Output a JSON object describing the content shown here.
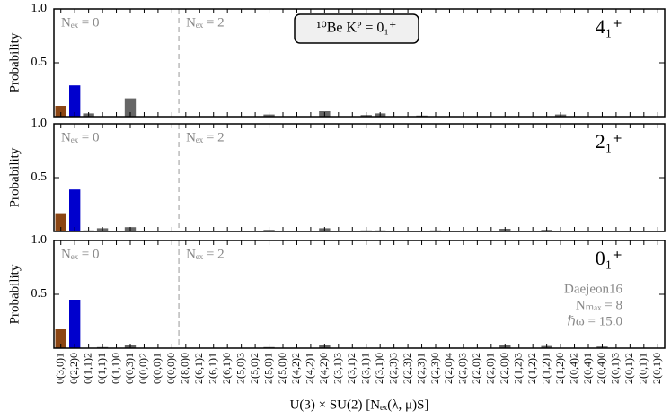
{
  "chart_data": [
    {
      "type": "bar",
      "title": "¹⁰Be Kᴾ = 0₁⁺",
      "state": "4₁⁺",
      "ylabel": "Probability",
      "annotations": [
        "Nₑₓ = 0",
        "Nₑₓ = 2"
      ],
      "ylim": [
        0,
        1
      ],
      "yticks": [
        0.5,
        {
          "value": 1,
          "label": "1.0"
        }
      ],
      "values": [
        0.1,
        0.29,
        0.03,
        0,
        0,
        0.17,
        0,
        0,
        0,
        0,
        0,
        0,
        0,
        0,
        0,
        0.02,
        0,
        0,
        0,
        0.05,
        0,
        0,
        0.015,
        0.03,
        0,
        0,
        0.01,
        0,
        0,
        0,
        0,
        0,
        0,
        0,
        0,
        0,
        0.02,
        0,
        0,
        0,
        0,
        0,
        0,
        0
      ],
      "colors": [
        "#8b4513",
        "#0000cd",
        "#666666",
        "#666666",
        "#666666",
        "#666666",
        "#666666",
        "#666666",
        "#666666",
        "#666666",
        "#666666",
        "#666666",
        "#666666",
        "#666666",
        "#666666",
        "#666666",
        "#666666",
        "#666666",
        "#666666",
        "#666666",
        "#666666",
        "#666666",
        "#666666",
        "#666666",
        "#666666",
        "#666666",
        "#666666",
        "#666666",
        "#666666",
        "#666666",
        "#666666",
        "#666666",
        "#666666",
        "#666666",
        "#666666",
        "#666666",
        "#666666",
        "#666666",
        "#666666",
        "#666666",
        "#666666",
        "#666666",
        "#666666",
        "#666666"
      ]
    },
    {
      "type": "bar",
      "state": "2₁⁺",
      "ylabel": "Probability",
      "annotations": [
        "Nₑₓ = 0",
        "Nₑₓ = 2"
      ],
      "ylim": [
        0,
        1
      ],
      "yticks": [
        0.5,
        {
          "value": 1,
          "label": "1.0"
        }
      ],
      "values": [
        0.17,
        0.39,
        0.01,
        0.03,
        0,
        0.04,
        0,
        0,
        0,
        0,
        0,
        0,
        0,
        0,
        0,
        0.015,
        0,
        0,
        0,
        0.03,
        0,
        0,
        0.01,
        0.01,
        0,
        0,
        0,
        0.01,
        0,
        0,
        0,
        0,
        0.025,
        0,
        0,
        0.015,
        0,
        0,
        0,
        0,
        0,
        0,
        0,
        0
      ],
      "colors": [
        "#8b4513",
        "#0000cd",
        "#666666",
        "#666666",
        "#666666",
        "#666666",
        "#666666",
        "#666666",
        "#666666",
        "#666666",
        "#666666",
        "#666666",
        "#666666",
        "#666666",
        "#666666",
        "#666666",
        "#666666",
        "#666666",
        "#666666",
        "#666666",
        "#666666",
        "#666666",
        "#666666",
        "#666666",
        "#666666",
        "#666666",
        "#666666",
        "#666666",
        "#666666",
        "#666666",
        "#666666",
        "#666666",
        "#666666",
        "#666666",
        "#666666",
        "#666666",
        "#666666",
        "#666666",
        "#666666",
        "#666666",
        "#666666",
        "#666666",
        "#666666",
        "#666666"
      ]
    },
    {
      "type": "bar",
      "state": "0₁⁺",
      "ylabel": "Probability",
      "annotations": [
        "Nₑₓ = 0",
        "Nₑₓ = 2"
      ],
      "notes": [
        "Daejeon16",
        "Nₘₐₓ = 8",
        "ℏω = 15.0"
      ],
      "xlabel": "U(3) × SU(2) [Nₑₓ(λ, μ)S]",
      "ylim": [
        0,
        1
      ],
      "yticks": [
        0.5,
        {
          "value": 1,
          "label": "1.0"
        }
      ],
      "categories": [
        "0(3,0)1",
        "0(2,2)0",
        "0(1,1)2",
        "0(1,1)1",
        "0(1,1)0",
        "0(0,3)1",
        "0(0,0)2",
        "0(0,0)1",
        "0(0,0)0",
        "2(8,0)0",
        "2(6,1)2",
        "2(6,1)1",
        "2(6,1)0",
        "2(5,0)3",
        "2(5,0)2",
        "2(5,0)1",
        "2(5,0)0",
        "2(4,2)2",
        "2(4,2)1",
        "2(4,2)0",
        "2(3,1)3",
        "2(3,1)2",
        "2(3,1)1",
        "2(3,1)0",
        "2(2,3)3",
        "2(2,3)2",
        "2(2,3)1",
        "2(2,3)0",
        "2(2,0)4",
        "2(2,0)3",
        "2(2,0)2",
        "2(2,0)1",
        "2(2,0)0",
        "2(1,2)3",
        "2(1,2)2",
        "2(1,2)1",
        "2(1,2)0",
        "2(0,4)2",
        "2(0,4)1",
        "2(0,4)0",
        "2(0,1)3",
        "2(0,1)2",
        "2(0,1)1",
        "2(0,1)0"
      ],
      "values": [
        0.175,
        0.45,
        0,
        0.01,
        0,
        0.025,
        0,
        0,
        0,
        0,
        0,
        0,
        0,
        0,
        0,
        0.01,
        0,
        0,
        0,
        0.025,
        0,
        0,
        0,
        0,
        0,
        0,
        0,
        0,
        0,
        0,
        0,
        0,
        0.025,
        0,
        0,
        0.02,
        0,
        0,
        0,
        0.015,
        0,
        0,
        0,
        0
      ],
      "colors": [
        "#8b4513",
        "#0000cd",
        "#666666",
        "#666666",
        "#666666",
        "#666666",
        "#666666",
        "#666666",
        "#666666",
        "#666666",
        "#666666",
        "#666666",
        "#666666",
        "#666666",
        "#666666",
        "#666666",
        "#666666",
        "#666666",
        "#666666",
        "#666666",
        "#666666",
        "#666666",
        "#666666",
        "#666666",
        "#666666",
        "#666666",
        "#666666",
        "#666666",
        "#666666",
        "#666666",
        "#666666",
        "#666666",
        "#666666",
        "#666666",
        "#666666",
        "#666666",
        "#666666",
        "#666666",
        "#666666",
        "#666666",
        "#666666",
        "#666666",
        "#666666",
        "#666666"
      ]
    }
  ]
}
